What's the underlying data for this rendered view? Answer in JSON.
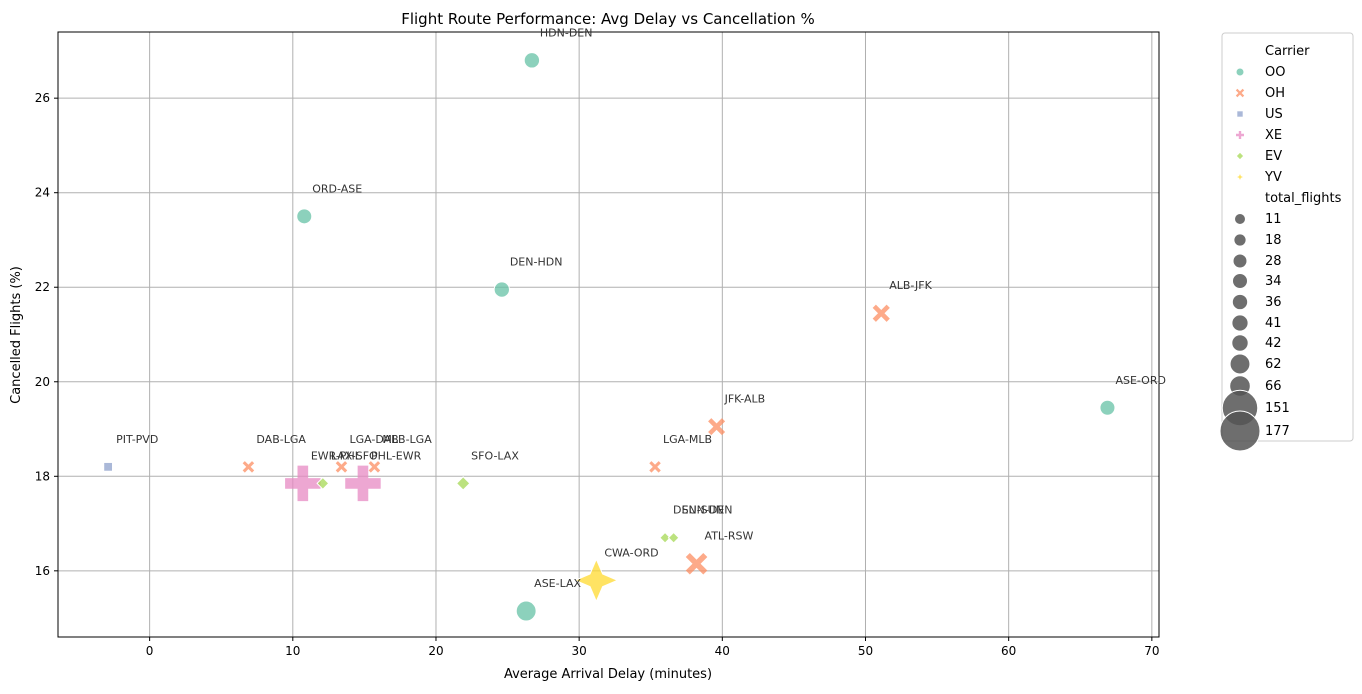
{
  "chart_data": {
    "type": "scatter",
    "title": "Flight Route Performance: Avg Delay vs Cancellation %",
    "xlabel": "Average Arrival Delay (minutes)",
    "ylabel": "Cancelled Flights (%)",
    "xlim": [
      -6.4,
      70.5
    ],
    "ylim": [
      14.6,
      27.4
    ],
    "xticks": [
      0,
      10,
      20,
      30,
      40,
      50,
      60,
      70
    ],
    "yticks": [
      16,
      18,
      20,
      22,
      24,
      26
    ],
    "grid": true,
    "legend_position": "outside-right",
    "legend": {
      "hue_title": "Carrier",
      "size_title": "total_flights",
      "carriers": [
        "OO",
        "OH",
        "US",
        "XE",
        "EV",
        "YV"
      ],
      "sizes": [
        11,
        18,
        28,
        34,
        36,
        41,
        42,
        62,
        66,
        151,
        177
      ]
    },
    "colors": {
      "OO": "#66c2a5",
      "OH": "#fc8d62",
      "US": "#8da0cb",
      "XE": "#e78ac3",
      "EV": "#a6d854",
      "YV": "#ffd92f"
    },
    "markers": {
      "OO": "circle",
      "OH": "x",
      "US": "square",
      "XE": "plus",
      "EV": "diamond",
      "YV": "star4"
    },
    "points": [
      {
        "label": "HDN-DEN",
        "carrier": "OO",
        "x": 26.7,
        "y": 26.8,
        "total_flights": 36
      },
      {
        "label": "ORD-ASE",
        "carrier": "OO",
        "x": 10.8,
        "y": 23.5,
        "total_flights": 34
      },
      {
        "label": "DEN-HDN",
        "carrier": "OO",
        "x": 24.6,
        "y": 21.95,
        "total_flights": 36
      },
      {
        "label": "ASE-ORD",
        "carrier": "OO",
        "x": 66.9,
        "y": 19.45,
        "total_flights": 34
      },
      {
        "label": "ASE-LAX",
        "carrier": "OO",
        "x": 26.3,
        "y": 15.15,
        "total_flights": 62
      },
      {
        "label": "ALB-JFK",
        "carrier": "OH",
        "x": 51.1,
        "y": 21.45,
        "total_flights": 42
      },
      {
        "label": "JFK-ALB",
        "carrier": "OH",
        "x": 39.6,
        "y": 19.05,
        "total_flights": 41
      },
      {
        "label": "LGA-MLB",
        "carrier": "OH",
        "x": 35.3,
        "y": 18.2,
        "total_flights": 11
      },
      {
        "label": "DAB-LGA",
        "carrier": "OH",
        "x": 6.9,
        "y": 18.2,
        "total_flights": 11
      },
      {
        "label": "LGA-DAB",
        "carrier": "OH",
        "x": 13.4,
        "y": 18.2,
        "total_flights": 11
      },
      {
        "label": "MLB-LGA",
        "carrier": "OH",
        "x": 15.7,
        "y": 18.2,
        "total_flights": 11
      },
      {
        "label": "ATL-RSW",
        "carrier": "OH",
        "x": 38.2,
        "y": 16.15,
        "total_flights": 66
      },
      {
        "label": "PIT-PVD",
        "carrier": "US",
        "x": -2.9,
        "y": 18.2,
        "total_flights": 11
      },
      {
        "label": "EWR-PHL",
        "carrier": "XE",
        "x": 10.7,
        "y": 17.85,
        "total_flights": 151
      },
      {
        "label": "PHL-EWR",
        "carrier": "XE",
        "x": 14.9,
        "y": 17.85,
        "total_flights": 151
      },
      {
        "label": "LAX-SFO",
        "carrier": "EV",
        "x": 12.1,
        "y": 17.85,
        "total_flights": 18
      },
      {
        "label": "SFO-LAX",
        "carrier": "EV",
        "x": 21.9,
        "y": 17.85,
        "total_flights": 28
      },
      {
        "label": "DEN-SUN",
        "carrier": "EV",
        "x": 36.0,
        "y": 16.7,
        "total_flights": 11
      },
      {
        "label": "SUN-DEN",
        "carrier": "EV",
        "x": 36.6,
        "y": 16.7,
        "total_flights": 11
      },
      {
        "label": "CWA-ORD",
        "carrier": "YV",
        "x": 31.2,
        "y": 15.8,
        "total_flights": 177
      }
    ]
  }
}
